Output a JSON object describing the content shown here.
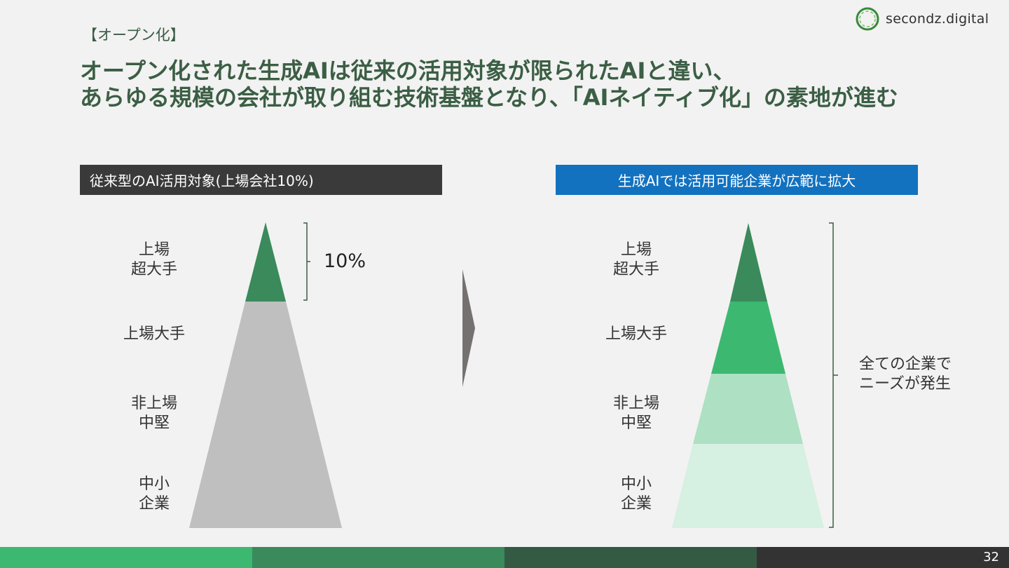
{
  "section_tag": "【オープン化】",
  "logo": {
    "text": "secondz.digital",
    "icon": "circle-ring-icon"
  },
  "title": {
    "line1": "オープン化された生成AIは従来の活用対象が限られたAIと違い、",
    "line2": "あらゆる規模の会社が取り組む技術基盤となり、「AIネイティブ化」の素地が進む"
  },
  "left": {
    "header": "従来型のAI活用対象(上場会社10%)",
    "levels": [
      {
        "line1": "上場",
        "line2": "超大手"
      },
      {
        "line1": "上場大手",
        "line2": ""
      },
      {
        "line1": "非上場",
        "line2": "中堅"
      },
      {
        "line1": "中小",
        "line2": "企業"
      }
    ],
    "bracket_label": "10%"
  },
  "right": {
    "header": "生成AIでは活用可能企業が広範に拡大",
    "levels": [
      {
        "line1": "上場",
        "line2": "超大手"
      },
      {
        "line1": "上場大手",
        "line2": ""
      },
      {
        "line1": "非上場",
        "line2": "中堅"
      },
      {
        "line1": "中小",
        "line2": "企業"
      }
    ],
    "bracket_label_line1": "全ての企業で",
    "bracket_label_line2": "ニーズが発生"
  },
  "colors": {
    "title": "#3b5e44",
    "left_top": "#3a8a5c",
    "left_rest": "#bfbfbf",
    "right_tiers": [
      "#3a8a5c",
      "#3db870",
      "#aee0c3",
      "#d6f0e1"
    ],
    "arrow": "#767171",
    "footer": [
      "#3db870",
      "#3a8a5c",
      "#345a44",
      "#333333"
    ]
  },
  "page_number": "32"
}
